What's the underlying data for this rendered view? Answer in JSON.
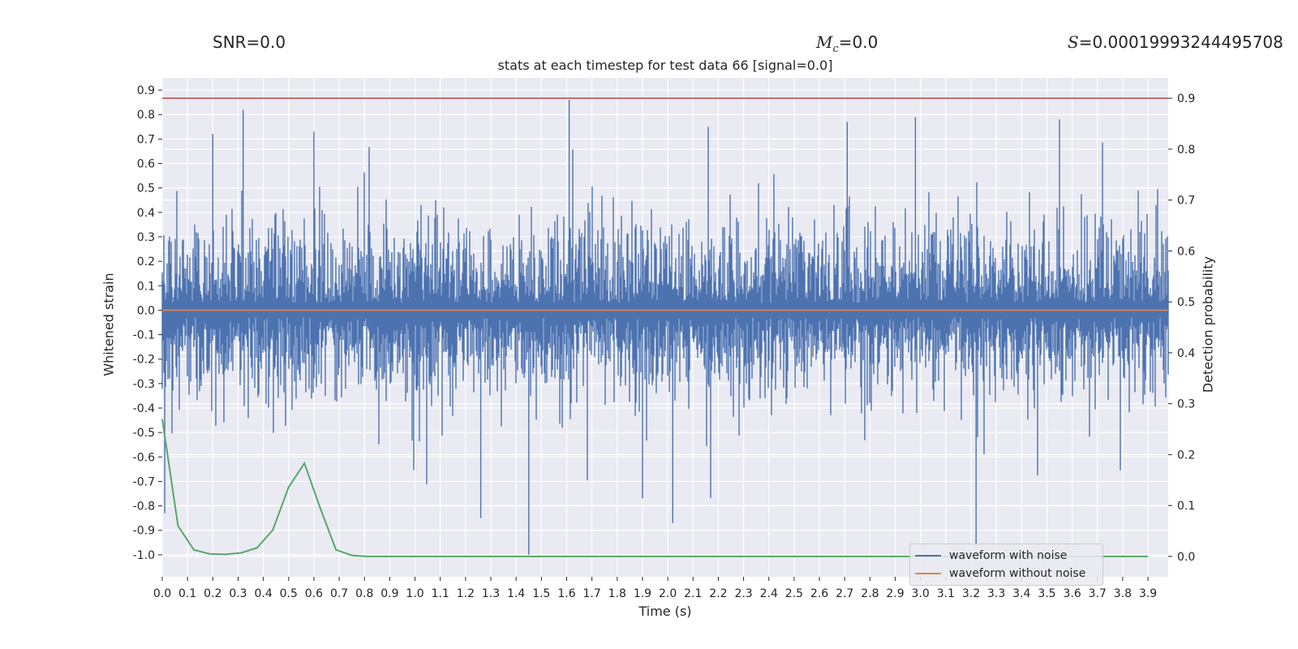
{
  "header": {
    "snr_label": "SNR=0.0",
    "mc_symbol": "M",
    "mc_sub": "c",
    "mc_value": "=0.0",
    "s_symbol": "S",
    "s_value": "=0.00019993244495708"
  },
  "colors": {
    "plot_bg": "#eaeaf2",
    "grid": "#ffffff",
    "noise": "#4c72b0",
    "clean": "#dd8452",
    "prob": "#55a868",
    "threshold": "#c44e52"
  },
  "chart_data": {
    "type": "line",
    "title": "stats at each timestep for test data 66 [signal=0.0]",
    "xlabel": "Time (s)",
    "ylabel": "Whitened strain",
    "y2label": "Detection probability",
    "xlim": [
      0.0,
      3.98
    ],
    "ylim": [
      -1.09,
      0.95
    ],
    "y2lim": [
      -0.04,
      0.94
    ],
    "x_ticks": [
      "0.0",
      "0.1",
      "0.2",
      "0.3",
      "0.4",
      "0.5",
      "0.6",
      "0.7",
      "0.8",
      "0.9",
      "1.0",
      "1.1",
      "1.2",
      "1.3",
      "1.4",
      "1.5",
      "1.6",
      "1.7",
      "1.8",
      "1.9",
      "2.0",
      "2.1",
      "2.2",
      "2.3",
      "2.4",
      "2.5",
      "2.6",
      "2.7",
      "2.8",
      "2.9",
      "3.0",
      "3.1",
      "3.2",
      "3.3",
      "3.4",
      "3.5",
      "3.6",
      "3.7",
      "3.8",
      "3.9"
    ],
    "y_ticks": [
      "0.9",
      "0.8",
      "0.7",
      "0.6",
      "0.5",
      "0.4",
      "0.3",
      "0.2",
      "0.1",
      "0.0",
      "-0.1",
      "-0.2",
      "-0.3",
      "-0.4",
      "-0.5",
      "-0.6",
      "-0.7",
      "-0.8",
      "-0.9",
      "-1.0"
    ],
    "y2_ticks": [
      "0.9",
      "0.8",
      "0.7",
      "0.6",
      "0.5",
      "0.4",
      "0.3",
      "0.2",
      "0.1",
      "0.0"
    ],
    "series": [
      {
        "name": "waveform with noise",
        "axis": "left",
        "envelope": {
          "typical_amplitude": 0.33,
          "peak_amplitude": 0.86
        },
        "notable_peaks": [
          {
            "t": 0.2,
            "v": 0.72
          },
          {
            "t": 0.32,
            "v": 0.82
          },
          {
            "t": 0.6,
            "v": 0.73
          },
          {
            "t": 1.61,
            "v": 0.86
          },
          {
            "t": 2.16,
            "v": 0.75
          },
          {
            "t": 2.71,
            "v": 0.77
          },
          {
            "t": 2.98,
            "v": 0.79
          },
          {
            "t": 3.55,
            "v": 0.78
          },
          {
            "t": 1.45,
            "v": -1.0
          },
          {
            "t": 3.22,
            "v": -0.96
          },
          {
            "t": 1.26,
            "v": -0.85
          },
          {
            "t": 2.02,
            "v": -0.87
          },
          {
            "t": 0.01,
            "v": -0.83
          },
          {
            "t": 1.9,
            "v": -0.77
          }
        ]
      },
      {
        "name": "waveform without noise",
        "axis": "left",
        "x": [
          0.0,
          3.98
        ],
        "y": [
          0.0,
          0.0
        ]
      },
      {
        "name": "detection probability",
        "axis": "right",
        "x": [
          0.0,
          0.0625,
          0.125,
          0.1875,
          0.25,
          0.3125,
          0.375,
          0.4375,
          0.5,
          0.5625,
          0.625,
          0.6875,
          0.75,
          0.8125,
          1.0,
          2.0,
          3.0,
          3.9
        ],
        "y": [
          0.27,
          0.06,
          0.013,
          0.005,
          0.004,
          0.007,
          0.017,
          0.052,
          0.136,
          0.183,
          0.095,
          0.013,
          0.002,
          0.0,
          0.0,
          0.0,
          0.0,
          0.0
        ]
      },
      {
        "name": "threshold",
        "axis": "right",
        "x": [
          0.0,
          3.98
        ],
        "y": [
          0.9,
          0.9
        ]
      }
    ],
    "legend": {
      "position": "bottom-right",
      "entries": [
        "waveform with noise",
        "waveform without noise"
      ]
    }
  }
}
